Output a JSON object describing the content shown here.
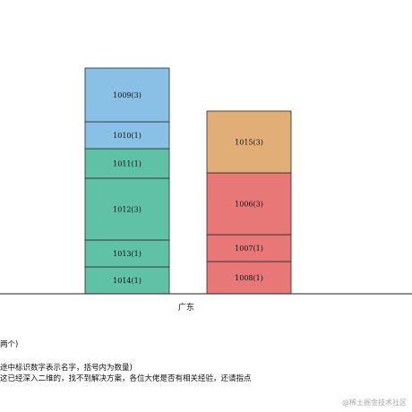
{
  "chart_data": {
    "type": "bar",
    "stacked": true,
    "categories": [
      "广东"
    ],
    "columns": [
      {
        "category": "广东",
        "segments": [
          {
            "label": "1014(1)",
            "value": 1,
            "color": "#5fc1a6"
          },
          {
            "label": "1013(1)",
            "value": 1,
            "color": "#5fc1a6"
          },
          {
            "label": "1012(3)",
            "value": 2.3,
            "color": "#5fc1a6"
          },
          {
            "label": "1011(1)",
            "value": 1.1,
            "color": "#5fc1a6"
          },
          {
            "label": "1010(1)",
            "value": 1,
            "color": "#89c0e6"
          },
          {
            "label": "1009(3)",
            "value": 2,
            "color": "#89c0e6"
          }
        ]
      },
      {
        "category": "",
        "segments": [
          {
            "label": "1008(1)",
            "value": 1.2,
            "color": "#e77877"
          },
          {
            "label": "1007(1)",
            "value": 1,
            "color": "#e77877"
          },
          {
            "label": "1006(3)",
            "value": 2.3,
            "color": "#e77877"
          },
          {
            "label": "1015(3)",
            "value": 2.3,
            "color": "#e1ae77"
          }
        ]
      }
    ],
    "title": "",
    "xlabel": "",
    "ylabel": "",
    "grid": false
  },
  "notes": {
    "line1": "两个)",
    "line2": "途中标识数字表示名字，括号内为数量)",
    "line3": "这已经深入二维的，找不到解决方案，各位大佬是否有相关经验，还请指点"
  },
  "watermark": "@稀土掘金技术社区"
}
